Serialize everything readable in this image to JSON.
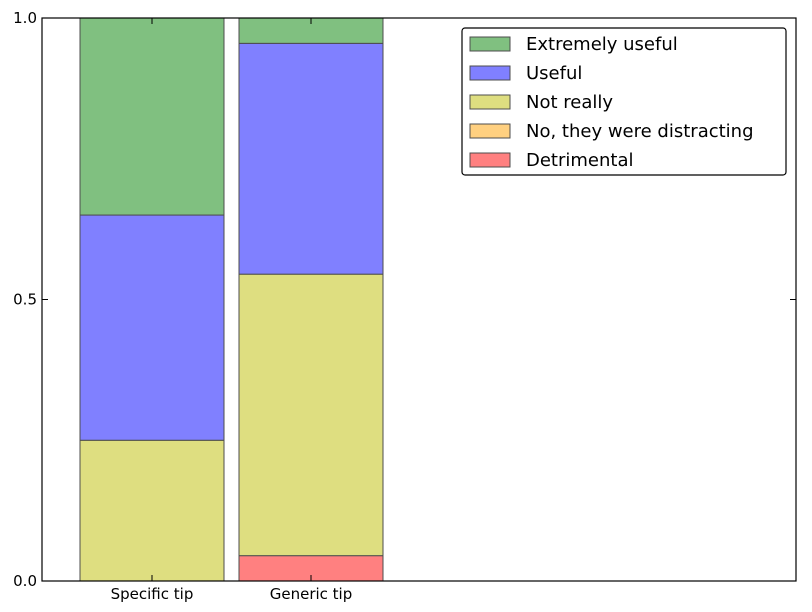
{
  "chart_data": {
    "type": "bar",
    "stacked": true,
    "normalized": true,
    "categories": [
      "Specific tip",
      "Generic tip"
    ],
    "series": [
      {
        "name": "Detrimental",
        "color": "#ff8080",
        "values": [
          0.0,
          0.045
        ]
      },
      {
        "name": "No, they were distracting",
        "color": "#ffd080",
        "values": [
          0.0,
          0.0
        ]
      },
      {
        "name": "Not really",
        "color": "#dede80",
        "values": [
          0.25,
          0.5
        ]
      },
      {
        "name": "Useful",
        "color": "#8080ff",
        "values": [
          0.4,
          0.41
        ]
      },
      {
        "name": "Extremely useful",
        "color": "#80c080",
        "values": [
          0.35,
          0.045
        ]
      }
    ],
    "legend_order": [
      "Extremely useful",
      "Useful",
      "Not really",
      "No, they were distracting",
      "Detrimental"
    ],
    "legend_position": "top-right",
    "ylim": [
      0,
      1
    ],
    "yticks": [
      0,
      0.5,
      1
    ],
    "ytick_labels": [
      "0.0",
      "0.5",
      "1.0"
    ],
    "grid": false,
    "title": "",
    "xlabel": "",
    "ylabel": ""
  }
}
